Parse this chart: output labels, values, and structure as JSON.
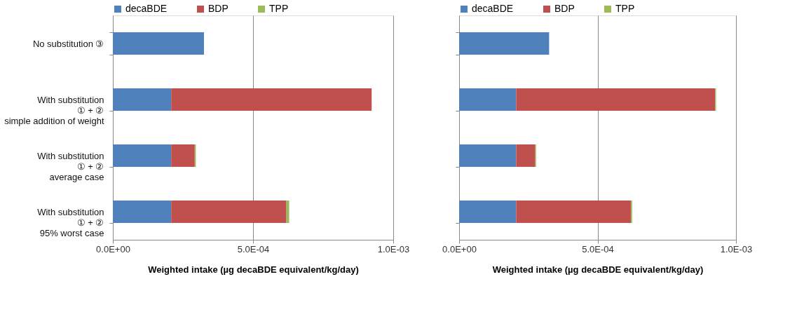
{
  "chart_data": [
    {
      "type": "bar",
      "orientation": "horizontal",
      "stacked": true,
      "xlabel": "Weighted intake (µg decaBDE equivalent/kg/day)",
      "categories": [
        "No substitution ③",
        "With substitution\n① + ②\nsimple addition of weight",
        "With substitution\n① + ②\naverage case",
        "With substitution\n① + ②\n95% worst case"
      ],
      "series": [
        {
          "name": "decaBDE",
          "color": "#4f81bd",
          "values": [
            0.000325,
            0.000208,
            0.000208,
            0.000208
          ]
        },
        {
          "name": "BDP",
          "color": "#c0504d",
          "values": [
            0,
            0.000715,
            8.4e-05,
            0.000411
          ]
        },
        {
          "name": "TPP",
          "color": "#9bbb59",
          "values": [
            0,
            0,
            4e-06,
            1e-05
          ]
        }
      ],
      "xlim": [
        0,
        0.001
      ],
      "xticks": [
        {
          "value": 0,
          "label": "0.0E+00"
        },
        {
          "value": 0.0005,
          "label": "5.0E-04"
        },
        {
          "value": 0.001,
          "label": "1.0E-03"
        }
      ],
      "grid": "x",
      "legend": "top"
    },
    {
      "type": "bar",
      "orientation": "horizontal",
      "stacked": true,
      "xlabel": "Weighted intake (µg decaBDE equivalent/kg/day)",
      "categories": [
        null,
        null,
        null,
        null
      ],
      "series": [
        {
          "name": "decaBDE",
          "color": "#4f81bd",
          "values": [
            0.000325,
            0.000206,
            0.000206,
            0.000206
          ]
        },
        {
          "name": "BDP",
          "color": "#c0504d",
          "values": [
            0,
            0.000719,
            6.9e-05,
            0.000415
          ]
        },
        {
          "name": "TPP",
          "color": "#9bbb59",
          "values": [
            0,
            3e-06,
            3e-06,
            4e-06
          ]
        }
      ],
      "xlim": [
        0,
        0.001
      ],
      "xticks": [
        {
          "value": 0,
          "label": "0.0E+00"
        },
        {
          "value": 0.0005,
          "label": "5.0E-04"
        },
        {
          "value": 0.001,
          "label": "1.0E-03"
        }
      ],
      "grid": "x",
      "legend": "top",
      "tick_labels": "x"
    }
  ]
}
